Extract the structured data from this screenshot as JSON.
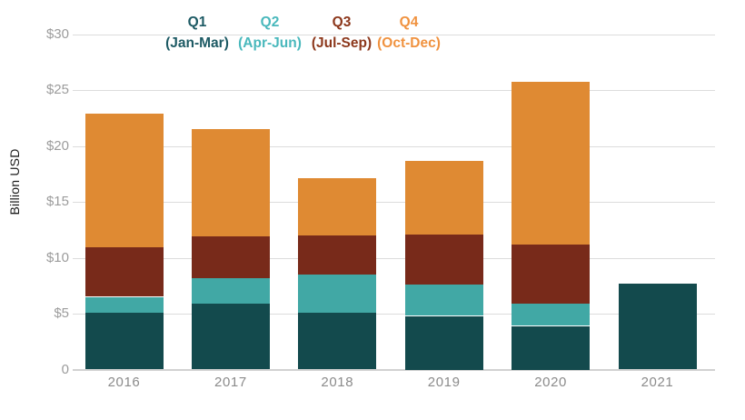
{
  "chart_data": {
    "type": "bar",
    "subtype": "stacked",
    "title": "",
    "xlabel": "",
    "ylabel": "Billion USD",
    "ylim": [
      0,
      30
    ],
    "grid": true,
    "legend_position": "top",
    "categories": [
      "2016",
      "2017",
      "2018",
      "2019",
      "2020",
      "2021"
    ],
    "series": [
      {
        "name": "Q1",
        "months": "(Jan-Mar)",
        "bar_color": "#134a4d",
        "legend_color": "#1d5a64",
        "values": [
          5.1,
          5.9,
          5.1,
          4.8,
          3.9,
          7.7
        ]
      },
      {
        "name": "Q2",
        "months": "(Apr-Jun)",
        "bar_color": "#41a8a5",
        "legend_color": "#49b8bc",
        "values": [
          1.4,
          2.3,
          3.4,
          2.8,
          2.0,
          0
        ]
      },
      {
        "name": "Q3",
        "months": "(Jul-Sep)",
        "bar_color": "#782a1a",
        "legend_color": "#8c371b",
        "values": [
          4.4,
          3.7,
          3.5,
          4.5,
          5.3,
          0
        ]
      },
      {
        "name": "Q4",
        "months": "(Oct-Dec)",
        "bar_color": "#df8a33",
        "legend_color": "#f0923f",
        "values": [
          12.0,
          9.6,
          5.1,
          6.6,
          14.5,
          0
        ]
      }
    ],
    "totals": [
      22.9,
      21.5,
      17.1,
      18.7,
      25.7,
      7.7
    ],
    "y_ticks": [
      {
        "label": "$30",
        "value": 30
      },
      {
        "label": "$25",
        "value": 25
      },
      {
        "label": "$20",
        "value": 20
      },
      {
        "label": "$15",
        "value": 15
      },
      {
        "label": "$10",
        "value": 10
      },
      {
        "label": "$5",
        "value": 5
      },
      {
        "label": "0",
        "value": 0
      }
    ]
  }
}
